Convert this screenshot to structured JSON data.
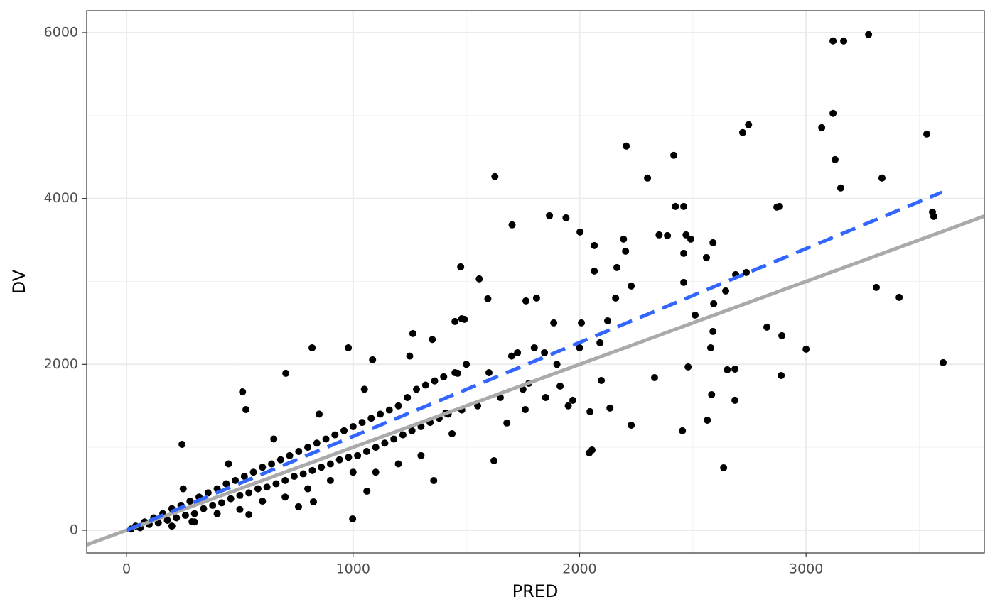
{
  "chart_data": {
    "type": "scatter",
    "xlabel": "PRED",
    "ylabel": "DV",
    "xlim": [
      -176,
      3787
    ],
    "ylim": [
      -274,
      6265
    ],
    "xticks": [
      0,
      1000,
      2000,
      3000
    ],
    "yticks": [
      0,
      2000,
      4000,
      6000
    ],
    "x_minor_grid": [
      500,
      1500,
      2500,
      3500
    ],
    "y_minor_grid": [
      1000,
      3000,
      5000
    ],
    "grid": true,
    "series": [
      {
        "type": "scatter",
        "color": "#000000",
        "x": [
          3119,
          3166,
          3276,
          3119,
          3069,
          3128,
          3153,
          3335,
          3533,
          3558,
          3564,
          3310,
          3411,
          3000,
          3605,
          2720,
          2746,
          2206,
          2416,
          2300,
          1626,
          1702,
          1867,
          1940,
          2002,
          2065,
          2065,
          2460,
          2423,
          2871,
          2883,
          1475,
          1557,
          1595,
          2636,
          998,
          2454,
          2043,
          2055,
          2228,
          2890,
          2893,
          2827,
          2736,
          2689,
          2589,
          2560,
          2388,
          2351,
          2194,
          2203,
          2470,
          2460,
          2491,
          2645,
          2589,
          2579,
          2479,
          2331,
          2686,
          2652,
          2583,
          2564,
          2686,
          2460,
          2592,
          2510,
          2228,
          2159,
          2165,
          2124,
          2008,
          2090,
          2096,
          2134,
          2046,
          1970,
          1914,
          1886,
          1810,
          1763,
          1845,
          1726,
          1776,
          1760,
          1679,
          1622,
          1437,
          819,
          703,
          512,
          527,
          245,
          979,
          1086,
          1264,
          1450,
          1491,
          1462,
          1409,
          1356,
          1061,
          825,
          759,
          540,
          289,
          20,
          40,
          60,
          80,
          100,
          120,
          140,
          160,
          180,
          200,
          220,
          240,
          260,
          280,
          300,
          320,
          340,
          360,
          380,
          400,
          420,
          440,
          460,
          480,
          500,
          520,
          540,
          560,
          580,
          600,
          620,
          640,
          660,
          680,
          700,
          720,
          740,
          760,
          780,
          800,
          820,
          840,
          860,
          880,
          900,
          920,
          940,
          960,
          980,
          1000,
          1020,
          1040,
          1060,
          1080,
          1100,
          1120,
          1140,
          1160,
          1180,
          1200,
          1220,
          1240,
          1260,
          1280,
          1300,
          1320,
          1340,
          1360,
          1380,
          1400,
          1420,
          1450,
          1480,
          1500,
          1550,
          1600,
          1650,
          1700,
          1750,
          1800,
          1850,
          1900,
          1950,
          2000,
          300,
          500,
          700,
          900,
          1100,
          1300,
          200,
          400,
          600,
          800,
          1000,
          1200,
          250,
          450,
          650,
          850,
          1050,
          1250,
          1350,
          1480
        ],
        "values": [
          5899,
          5899,
          5976,
          5026,
          4854,
          4469,
          4127,
          4247,
          4777,
          3836,
          3784,
          2928,
          2808,
          2183,
          2021,
          4795,
          4889,
          4632,
          4521,
          4247,
          4264,
          3682,
          3793,
          3767,
          3596,
          3433,
          3125,
          3904,
          3904,
          3896,
          3904,
          3176,
          3031,
          2791,
          753,
          137,
          1199,
          933,
          967,
          1267,
          1866,
          2346,
          2449,
          3108,
          3082,
          3467,
          3288,
          3553,
          3561,
          3510,
          3365,
          3561,
          3339,
          3510,
          2885,
          2397,
          2200,
          1969,
          1840,
          1943,
          1935,
          1635,
          1327,
          1567,
          2988,
          2731,
          2594,
          2945,
          2800,
          3168,
          2525,
          2500,
          2260,
          1806,
          1473,
          1430,
          1567,
          1738,
          2500,
          2800,
          2765,
          2140,
          2140,
          1772,
          1455,
          1293,
          839,
          1164,
          2200,
          1892,
          1669,
          1455,
          1036,
          2200,
          2055,
          2372,
          2517,
          2543,
          1892,
          1413,
          599,
          471,
          342,
          283,
          188,
          103,
          15,
          50,
          30,
          100,
          70,
          150,
          90,
          200,
          120,
          260,
          150,
          300,
          180,
          350,
          200,
          400,
          260,
          450,
          300,
          500,
          330,
          560,
          380,
          600,
          420,
          650,
          450,
          700,
          500,
          760,
          520,
          800,
          560,
          850,
          600,
          900,
          650,
          950,
          680,
          1000,
          720,
          1050,
          760,
          1100,
          800,
          1150,
          850,
          1200,
          880,
          1250,
          900,
          1300,
          950,
          1350,
          1000,
          1400,
          1050,
          1450,
          1100,
          1500,
          1150,
          1600,
          1200,
          1700,
          1250,
          1750,
          1300,
          1800,
          1350,
          1850,
          1400,
          1900,
          1450,
          2000,
          1500,
          1900,
          1600,
          2100,
          1700,
          2200,
          1600,
          2000,
          1500,
          2200,
          100,
          250,
          400,
          600,
          700,
          900,
          50,
          200,
          350,
          500,
          700,
          800,
          500,
          800,
          1100,
          1400,
          1700,
          2100,
          2300,
          2550
        ]
      },
      {
        "type": "line",
        "color": "#aaaaaa",
        "x": [
          -176,
          3787
        ],
        "values": [
          -176,
          3787
        ]
      },
      {
        "type": "line",
        "color": "#3366ff",
        "dashed": true,
        "x": [
          0,
          3600
        ],
        "values": [
          0,
          4075
        ]
      }
    ]
  }
}
